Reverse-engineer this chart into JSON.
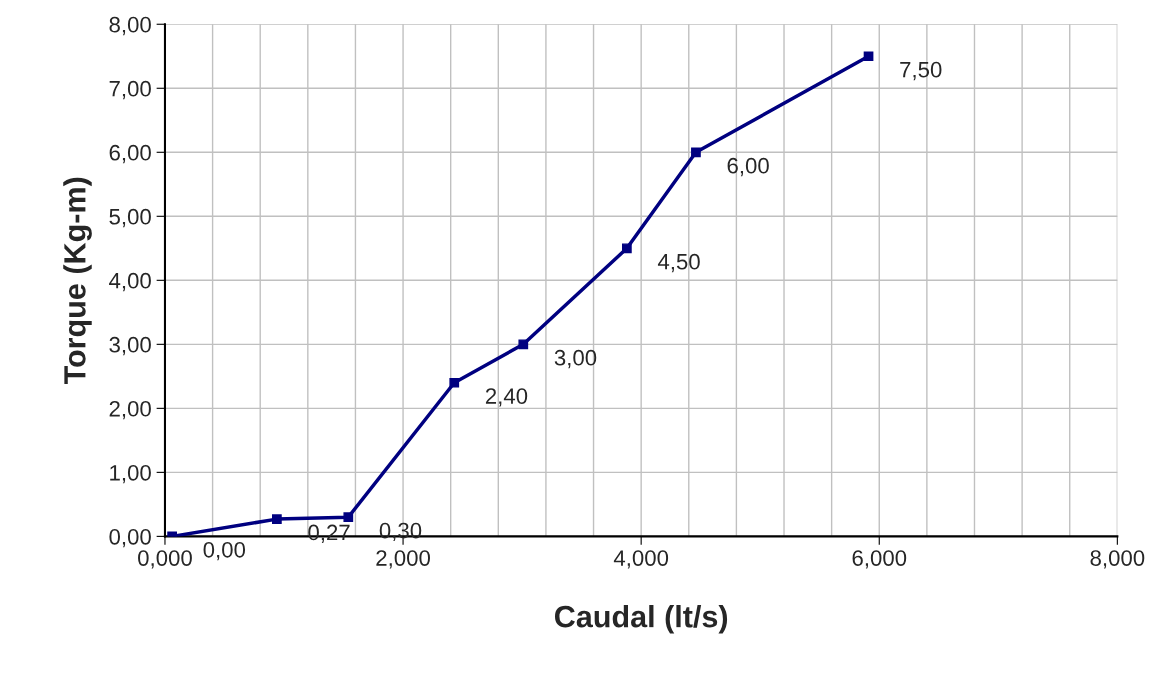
{
  "chart_data": {
    "type": "line",
    "xlabel": "Caudal (lt/s)",
    "ylabel": "Torque (Kg-m)",
    "x": [
      0.06,
      0.94,
      1.54,
      2.43,
      3.01,
      3.88,
      4.46,
      5.91
    ],
    "series": [
      {
        "color": "#000080",
        "values": [
          0.0,
          0.27,
          0.3,
          2.4,
          3.0,
          4.5,
          6.0,
          7.5
        ],
        "value_labels": [
          "0,00",
          "0,27",
          "0,30",
          "2,40",
          "3,00",
          "4,50",
          "6,00",
          "7,50"
        ]
      }
    ],
    "marker": "square",
    "line_style": "solid",
    "xlim": [
      0,
      8
    ],
    "ylim": [
      0,
      8
    ],
    "xticks": [
      {
        "value": 0,
        "label": "0,000"
      },
      {
        "value": 0.4,
        "label": null
      },
      {
        "value": 0.8,
        "label": null
      },
      {
        "value": 1.2,
        "label": null
      },
      {
        "value": 1.6,
        "label": null
      },
      {
        "value": 2,
        "label": "2,000"
      },
      {
        "value": 2.4,
        "label": null
      },
      {
        "value": 2.8,
        "label": null
      },
      {
        "value": 3.2,
        "label": null
      },
      {
        "value": 3.6,
        "label": null
      },
      {
        "value": 4,
        "label": "4,000"
      },
      {
        "value": 4.4,
        "label": null
      },
      {
        "value": 4.8,
        "label": null
      },
      {
        "value": 5.2,
        "label": null
      },
      {
        "value": 5.6,
        "label": null
      },
      {
        "value": 6,
        "label": "6,000"
      },
      {
        "value": 6.4,
        "label": null
      },
      {
        "value": 6.8,
        "label": null
      },
      {
        "value": 7.2,
        "label": null
      },
      {
        "value": 7.6,
        "label": null
      },
      {
        "value": 8,
        "label": "8,000"
      }
    ],
    "yticks": [
      {
        "value": 0,
        "label": "0,00"
      },
      {
        "value": 1,
        "label": "1,00"
      },
      {
        "value": 2,
        "label": "2,00"
      },
      {
        "value": 3,
        "label": "3,00"
      },
      {
        "value": 4,
        "label": "4,00"
      },
      {
        "value": 5,
        "label": "5,00"
      },
      {
        "value": 6,
        "label": "6,00"
      },
      {
        "value": 7,
        "label": "7,00"
      },
      {
        "value": 8,
        "label": "8,00"
      }
    ],
    "grid": true
  }
}
